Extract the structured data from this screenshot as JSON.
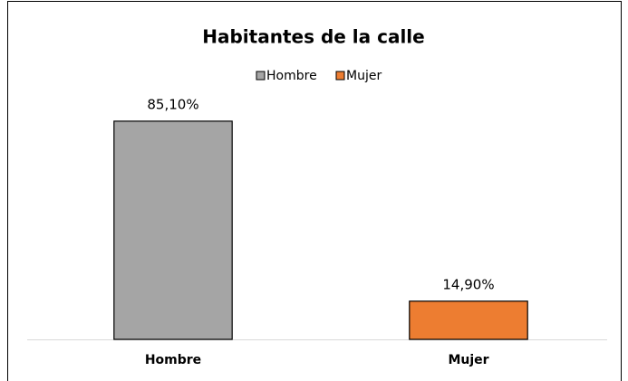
{
  "chart_data": {
    "type": "bar",
    "title": "Habitantes de la calle",
    "categories": [
      "Hombre",
      "Mujer"
    ],
    "values": [
      85.1,
      14.9
    ],
    "value_labels": [
      "85,10%",
      "14,90%"
    ],
    "colors": [
      "#a5a5a5",
      "#ed7d31"
    ],
    "ylim": [
      0,
      90
    ],
    "legend": "top"
  }
}
